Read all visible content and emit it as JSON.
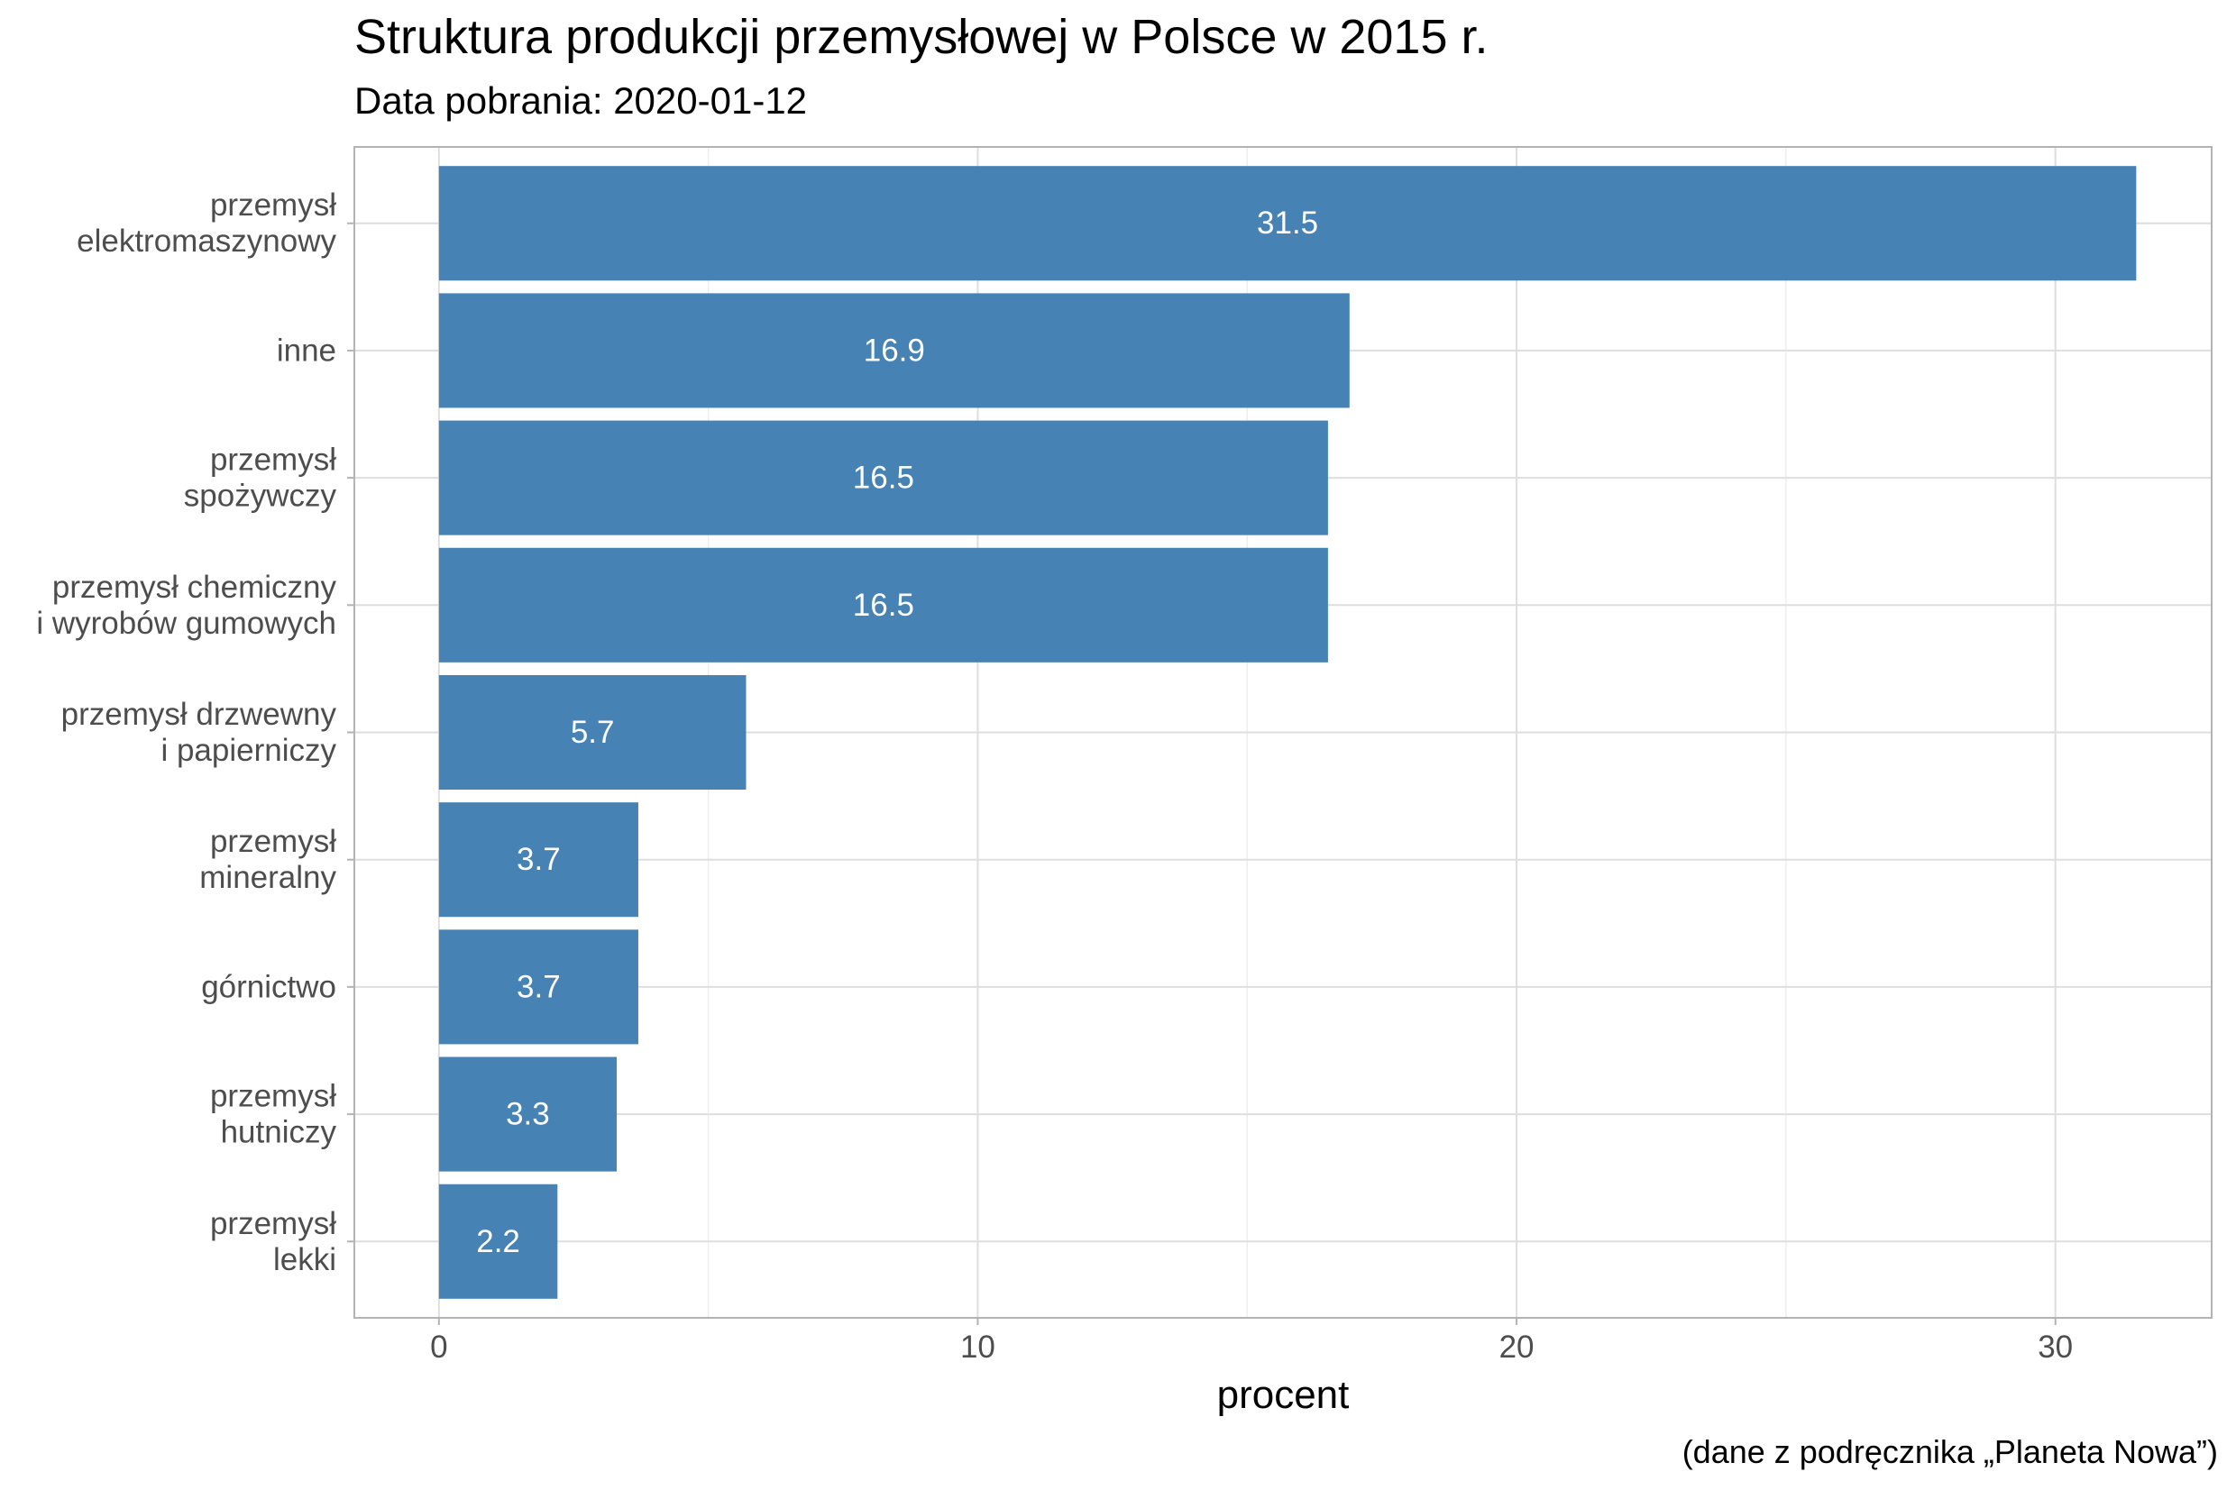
{
  "chart_data": {
    "type": "bar",
    "orientation": "horizontal",
    "title": "Struktura produkcji przemysłowej w Polsce w 2015 r.",
    "subtitle": "Data pobrania: 2020-01-12",
    "caption": "(dane z podręcznika „Planeta Nowa”)",
    "xlabel": "procent",
    "ylabel": "",
    "categories": [
      [
        "przemysł",
        "elektromaszynowy"
      ],
      [
        "inne"
      ],
      [
        "przemysł",
        "spożywczy"
      ],
      [
        "przemysł chemiczny",
        "i wyrobów gumowych"
      ],
      [
        "przemysł drzwewny",
        "i papierniczy"
      ],
      [
        "przemysł",
        "mineralny"
      ],
      [
        "górnictwo"
      ],
      [
        "przemysł",
        "hutniczy"
      ],
      [
        "przemysł",
        "lekki"
      ]
    ],
    "values": [
      31.5,
      16.9,
      16.5,
      16.5,
      5.7,
      3.7,
      3.7,
      3.3,
      2.2
    ],
    "data_labels": [
      "31.5",
      "16.9",
      "16.5",
      "16.5",
      "5.7",
      "3.7",
      "3.7",
      "3.3",
      "2.2"
    ],
    "xlim": [
      -1.57,
      32.9
    ],
    "xticks": [
      0,
      10,
      20,
      30
    ],
    "xtick_labels": [
      "0",
      "10",
      "20",
      "30"
    ],
    "grid": true,
    "colors": {
      "bar": "#4682B4",
      "bar_label": "#ffffff",
      "grid_major": "#DEDEDE",
      "grid_minor": "#EEEEEE",
      "panel_border": "#B3B3B3",
      "axis_text": "#4D4D4D"
    }
  }
}
